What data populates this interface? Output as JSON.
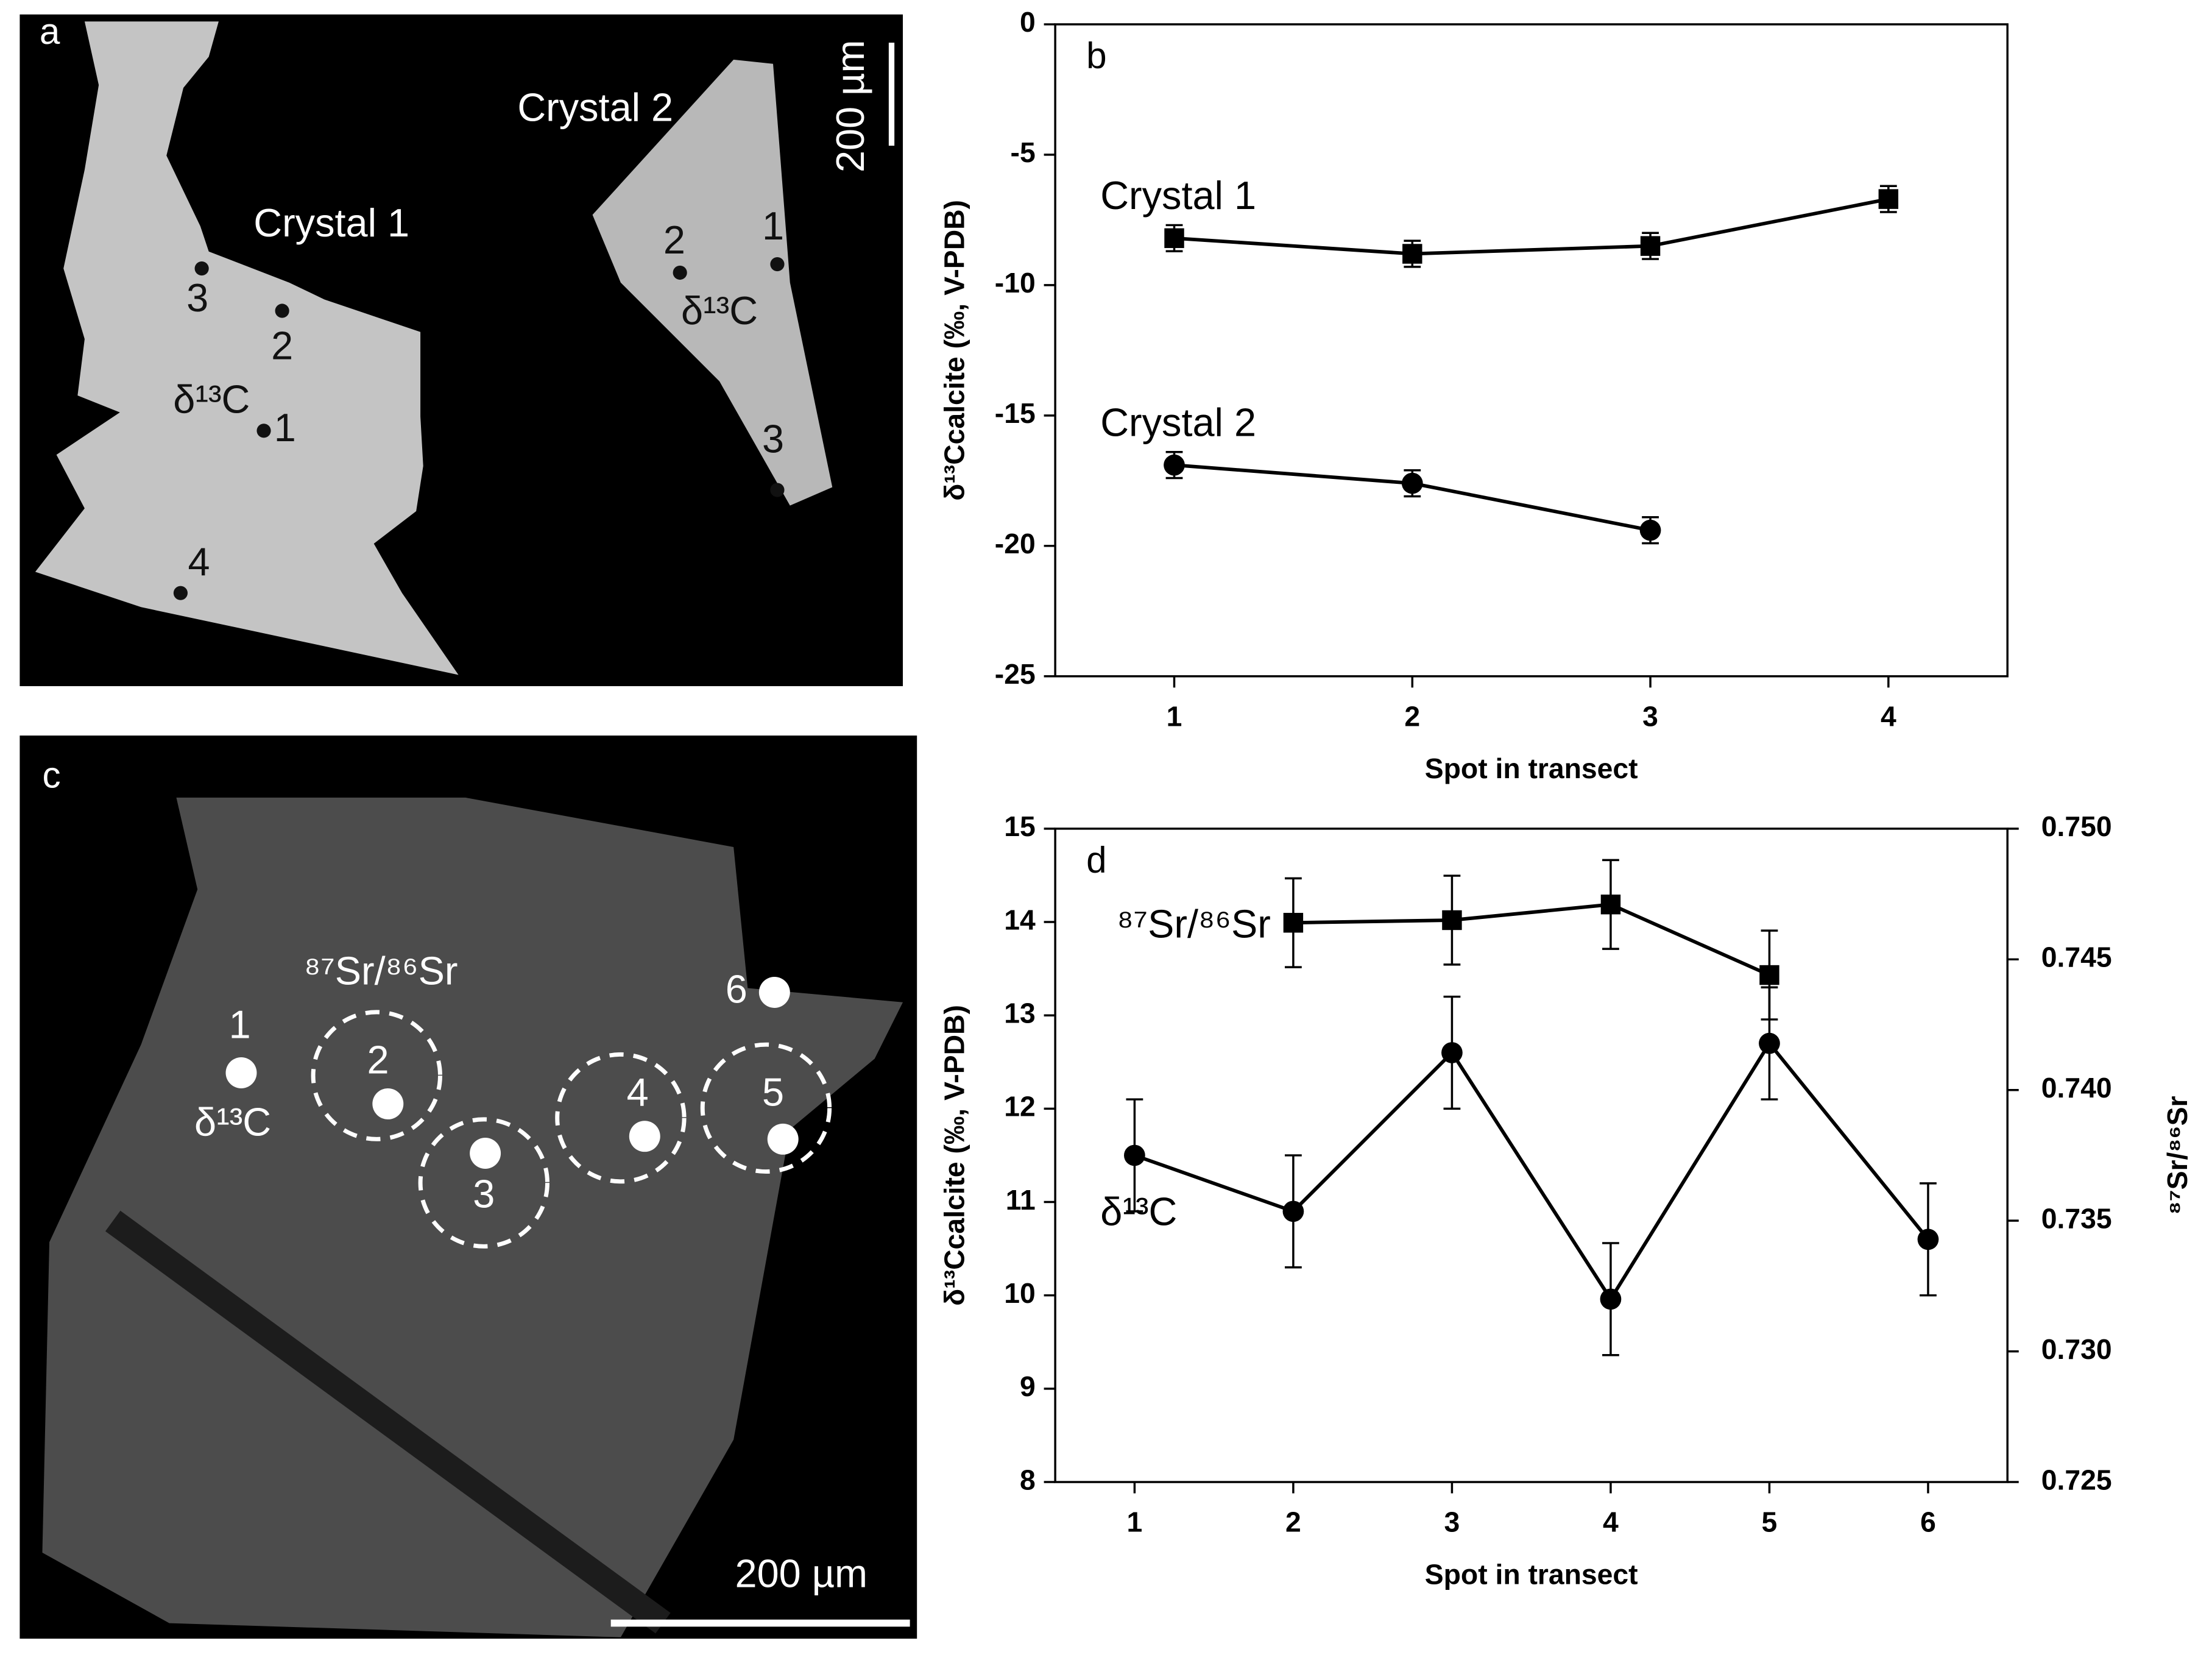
{
  "panel_a": {
    "label": "a",
    "crystals": [
      "Crystal 1",
      "Crystal 2"
    ],
    "scale": "200 µm",
    "isotope": "δ¹³C",
    "spots": [
      "1",
      "2",
      "3",
      "4"
    ]
  },
  "panel_c": {
    "label": "c",
    "scale": "200 µm",
    "isotopes": [
      "δ¹³C",
      "⁸⁷Sr/⁸⁶Sr"
    ],
    "spots": [
      "1",
      "2",
      "3",
      "4",
      "5",
      "6"
    ]
  },
  "chart_data": [
    {
      "type": "line",
      "label": "b",
      "xlabel": "Spot in transect",
      "ylabel": "δ¹³Ccalcite (‰, V-PDB)",
      "categories": [
        1,
        2,
        3,
        4
      ],
      "ylim": [
        -25,
        0
      ],
      "yticks": [
        -25,
        -20,
        -15,
        -10,
        -5,
        0
      ],
      "series": [
        {
          "name": "Crystal 1",
          "color": "#000000",
          "marker": "square",
          "values": [
            -8.2,
            -8.8,
            -8.5,
            -6.7
          ],
          "errors": [
            0.5,
            0.5,
            0.5,
            0.5
          ]
        },
        {
          "name": "Crystal 2",
          "color": "#000000",
          "marker": "circle",
          "values": [
            -16.9,
            -17.6,
            -19.4,
            null
          ],
          "errors": [
            0.5,
            0.5,
            0.5,
            null
          ]
        }
      ]
    },
    {
      "type": "line",
      "label": "d",
      "xlabel": "Spot in transect",
      "ylabel": "δ¹³Ccalcite (‰, V-PDB)",
      "y2label": "⁸⁷Sr/⁸⁶Sr",
      "categories": [
        1,
        2,
        3,
        4,
        5,
        6
      ],
      "ylim": [
        8,
        15
      ],
      "yticks": [
        8,
        9,
        10,
        11,
        12,
        13,
        14,
        15
      ],
      "y2lim": [
        0.725,
        0.75
      ],
      "y2ticks": [
        0.725,
        {
          "value": 0.73,
          "label": "0.730"
        },
        0.735,
        {
          "value": 0.74,
          "label": "0.740"
        },
        0.745,
        {
          "value": 0.75,
          "label": "0.750"
        }
      ],
      "series": [
        {
          "name": "⁸⁷Sr/⁸⁶Sr",
          "color": "#000000",
          "marker": "square",
          "axis": "y2",
          "values": [
            null,
            0.7464,
            0.7465,
            0.7471,
            0.7444,
            null
          ],
          "errors": [
            null,
            0.0017,
            0.0017,
            0.0017,
            0.0017,
            null
          ]
        },
        {
          "name": "δ¹³C",
          "color": "#000000",
          "marker": "circle",
          "values": [
            11.5,
            10.9,
            12.6,
            9.96,
            12.7,
            10.6
          ],
          "errors": [
            0.6,
            0.6,
            0.6,
            0.6,
            0.6,
            0.6
          ]
        }
      ]
    }
  ]
}
